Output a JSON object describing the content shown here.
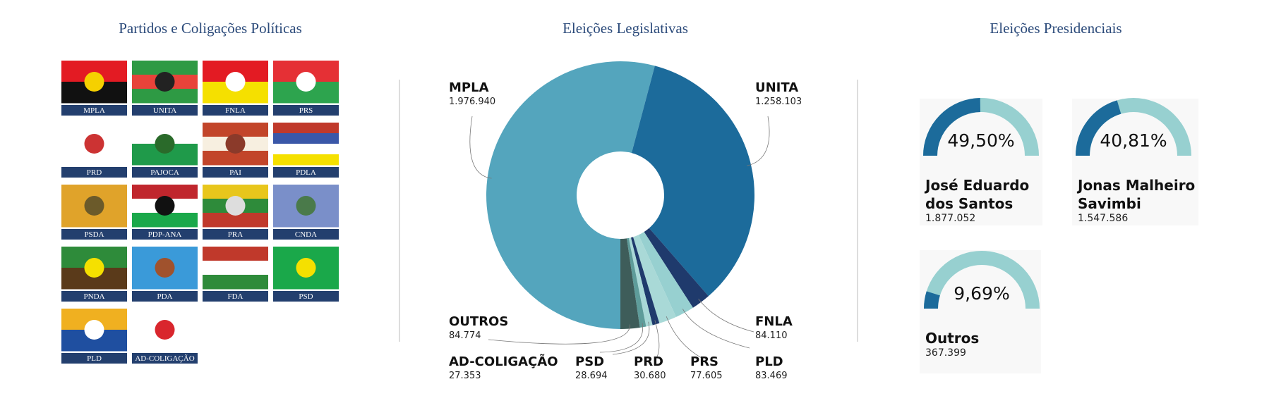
{
  "parties": {
    "title": "Partidos e Coligações Políticas",
    "names": [
      "MPLA",
      "UNITA",
      "FNLA",
      "PRS",
      "PRD",
      "PAJOCA",
      "PAI",
      "PDLA",
      "PSDA",
      "PDP-ANA",
      "PRA",
      "CNDA",
      "PNDA",
      "PDA",
      "FDA",
      "PSD",
      "PLD",
      "AD-COLIGAÇÃO"
    ]
  },
  "chart_data": [
    {
      "type": "donut",
      "title": "Eleições Legislativas",
      "categories": [
        "MPLA",
        "UNITA",
        "FNLA",
        "PLD",
        "PRS",
        "PRD",
        "PSD",
        "AD-COLIGAÇÃO",
        "OUTROS"
      ],
      "values": [
        1976940,
        1258103,
        84110,
        83469,
        77605,
        30680,
        28694,
        27353,
        84774
      ],
      "value_labels": [
        "1.976.940",
        "1.258.103",
        "84.110",
        "83.469",
        "77.605",
        "30.680",
        "28.694",
        "27.353",
        "84.774"
      ],
      "colors": [
        "#54a5bd",
        "#1c6b9b",
        "#1f3a6c",
        "#97d0d0",
        "#a9d9d7",
        "#1f3a6c",
        "#a9d9d7",
        "#5e9c9a",
        "#3e5d5a"
      ]
    },
    {
      "type": "gauge",
      "title": "Eleições Presidenciais",
      "categories": [
        "José Eduardo dos Santos",
        "Jonas Malheiro Savimbi",
        "Outros"
      ],
      "values": [
        49.5,
        40.81,
        9.69
      ],
      "value_labels": [
        "49,50%",
        "40,81%",
        "9,69%"
      ],
      "vote_labels": [
        "1.877.052",
        "1.547.586",
        "367.399"
      ],
      "ylim": [
        0,
        100
      ],
      "color": "#1c6b9b",
      "track_color": "#97d0d0"
    }
  ]
}
